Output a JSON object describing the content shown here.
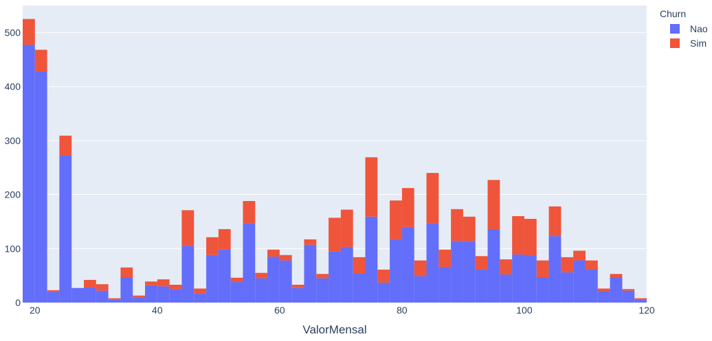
{
  "chart_data": {
    "type": "bar",
    "stacked": true,
    "xlabel": "ValorMensal",
    "ylabel": "",
    "xlim": [
      18,
      120
    ],
    "ylim": [
      0,
      550
    ],
    "bin_width": 2,
    "x": [
      19,
      21,
      23,
      25,
      27,
      29,
      31,
      33,
      35,
      37,
      39,
      41,
      43,
      45,
      47,
      49,
      51,
      53,
      55,
      57,
      59,
      61,
      63,
      65,
      67,
      69,
      71,
      73,
      75,
      77,
      79,
      81,
      83,
      85,
      87,
      89,
      91,
      93,
      95,
      97,
      99,
      101,
      103,
      105,
      107,
      109,
      111,
      113,
      115,
      117,
      119
    ],
    "xticks": [
      20,
      40,
      60,
      80,
      100,
      120
    ],
    "yticks": [
      0,
      100,
      200,
      300,
      400,
      500
    ],
    "xtick_labels": [
      "20",
      "40",
      "60",
      "80",
      "100",
      "120"
    ],
    "ytick_labels": [
      "0",
      "100",
      "200",
      "300",
      "400",
      "500"
    ],
    "series": [
      {
        "name": "Nao",
        "color": "#636efa",
        "values": [
          477,
          428,
          20,
          273,
          27,
          28,
          22,
          6,
          47,
          9,
          32,
          30,
          25,
          105,
          17,
          88,
          98,
          38,
          147,
          45,
          85,
          78,
          27,
          107,
          45,
          95,
          103,
          54,
          159,
          37,
          117,
          140,
          49,
          147,
          66,
          114,
          114,
          61,
          136,
          52,
          89,
          87,
          47,
          123,
          56,
          78,
          61,
          21,
          47,
          22,
          5
        ]
      },
      {
        "name": "Sim",
        "color": "#ef553b",
        "values": [
          48,
          40,
          3,
          36,
          0,
          14,
          12,
          2,
          18,
          4,
          7,
          13,
          8,
          66,
          9,
          33,
          38,
          8,
          41,
          10,
          13,
          10,
          6,
          10,
          8,
          62,
          69,
          30,
          110,
          24,
          72,
          72,
          29,
          93,
          32,
          59,
          45,
          25,
          91,
          28,
          71,
          68,
          31,
          55,
          28,
          18,
          17,
          5,
          6,
          3,
          3
        ]
      }
    ],
    "legend": {
      "title": "Churn",
      "position": "top-right",
      "items": [
        "Nao",
        "Sim"
      ]
    },
    "grid": true,
    "background": "#e5ecf6",
    "gridline_color": "#ffffff",
    "text_color": "#2a3f5f"
  }
}
